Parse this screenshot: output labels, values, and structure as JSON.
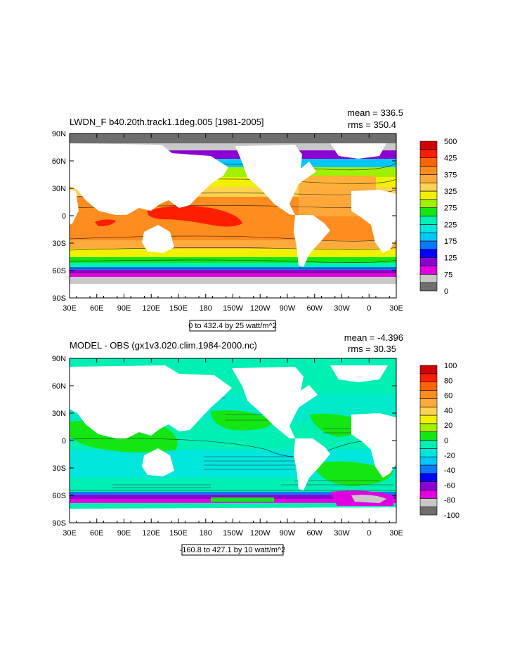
{
  "panels": [
    {
      "title": "LWDN_F b40.20th.track1.1deg.005 [1981-2005]",
      "mean_text": "mean = 336.5",
      "rms_text": "rms = 350.4",
      "subtitle": "0 to 432.4 by 25 watt/m^2",
      "lat_labels": [
        "90N",
        "60N",
        "30N",
        "0",
        "30S",
        "60S",
        "90S"
      ],
      "lon_labels": [
        "30E",
        "60E",
        "90E",
        "120E",
        "150E",
        "180",
        "150W",
        "120W",
        "90W",
        "60W",
        "30W",
        "0",
        "30E"
      ],
      "colorbar_colors": [
        "#6e6e6e",
        "#c8c8c8",
        "#e000e0",
        "#8c00d2",
        "#0000ff",
        "#0a78ff",
        "#00c8ff",
        "#00e6dc",
        "#00f0b4",
        "#14e614",
        "#a0f000",
        "#f0f000",
        "#ffd250",
        "#ffaa3c",
        "#ff8c1e",
        "#ff6400",
        "#ff1e00",
        "#d20000"
      ],
      "colorbar_labels": [
        "0",
        "75",
        "125",
        "175",
        "225",
        "275",
        "325",
        "375",
        "425",
        "500"
      ]
    },
    {
      "title": "MODEL - OBS (gx1v3.020.clim.1984-2000.nc)",
      "mean_text": "mean = -4.396",
      "rms_text": "rms = 30.35",
      "subtitle": "-160.8 to 427.1 by 10 watt/m^2",
      "lat_labels": [
        "90N",
        "60N",
        "30N",
        "0",
        "30S",
        "60S",
        "90S"
      ],
      "lon_labels": [
        "30E",
        "60E",
        "90E",
        "120E",
        "150E",
        "180",
        "150W",
        "120W",
        "90W",
        "60W",
        "30W",
        "0",
        "30E"
      ],
      "colorbar_colors": [
        "#6e6e6e",
        "#c8c8c8",
        "#e000e0",
        "#8c00d2",
        "#0000ff",
        "#0a78ff",
        "#00c8ff",
        "#00e6dc",
        "#00f0b4",
        "#14e614",
        "#a0f000",
        "#f0f000",
        "#ffd250",
        "#ffaa3c",
        "#ff8c1e",
        "#ff6400",
        "#ff1e00",
        "#d20000"
      ],
      "colorbar_labels": [
        "-100",
        "-80",
        "-60",
        "-40",
        "-20",
        "0",
        "20",
        "40",
        "60",
        "80",
        "100"
      ]
    }
  ]
}
